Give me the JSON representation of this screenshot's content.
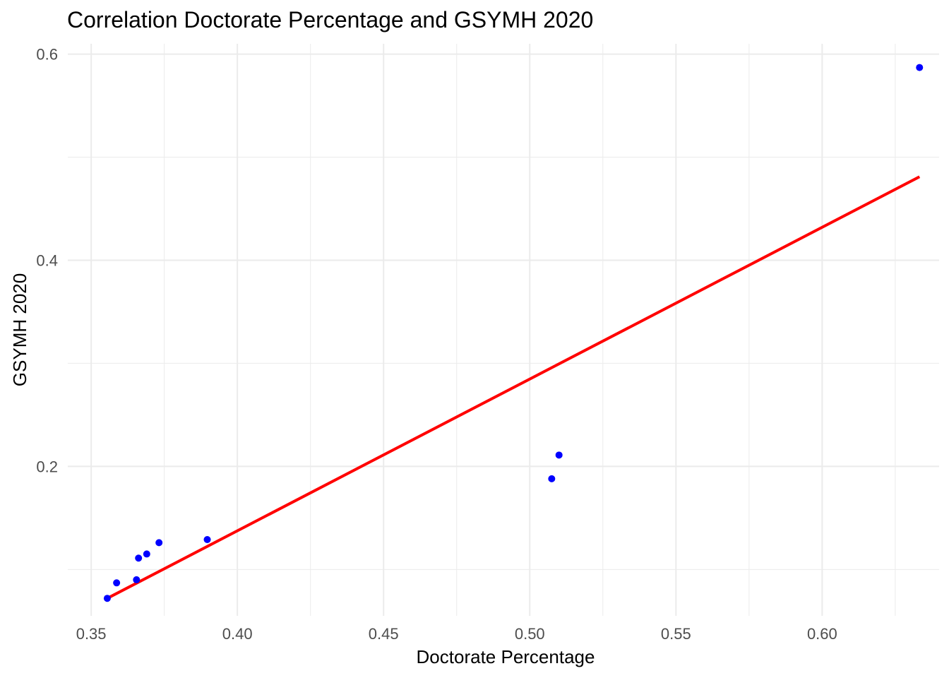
{
  "chart_data": {
    "type": "scatter",
    "title": "Correlation Doctorate Percentage and GSYMH 2020",
    "xlabel": "Doctorate Percentage",
    "ylabel": "GSYMH 2020",
    "xlim": [
      0.342,
      0.64
    ],
    "ylim": [
      0.055,
      0.61
    ],
    "x_ticks": [
      0.35,
      0.4,
      0.45,
      0.5,
      0.55,
      0.6
    ],
    "x_tick_labels": [
      "0.35",
      "0.40",
      "0.45",
      "0.50",
      "0.55",
      "0.60"
    ],
    "y_ticks": [
      0.2,
      0.4,
      0.6
    ],
    "y_tick_labels": [
      "0.2",
      "0.4",
      "0.6"
    ],
    "grid": true,
    "point_color": "#0000ff",
    "points": [
      {
        "x": 0.3555,
        "y": 0.072
      },
      {
        "x": 0.3587,
        "y": 0.087
      },
      {
        "x": 0.3655,
        "y": 0.09
      },
      {
        "x": 0.3662,
        "y": 0.111
      },
      {
        "x": 0.369,
        "y": 0.115
      },
      {
        "x": 0.3732,
        "y": 0.126
      },
      {
        "x": 0.3897,
        "y": 0.129
      },
      {
        "x": 0.5075,
        "y": 0.188
      },
      {
        "x": 0.51,
        "y": 0.211
      },
      {
        "x": 0.6333,
        "y": 0.587
      }
    ],
    "trend_line": {
      "color": "#ff0000",
      "from": {
        "x": 0.3555,
        "y": 0.072
      },
      "to": {
        "x": 0.6333,
        "y": 0.481
      }
    }
  }
}
